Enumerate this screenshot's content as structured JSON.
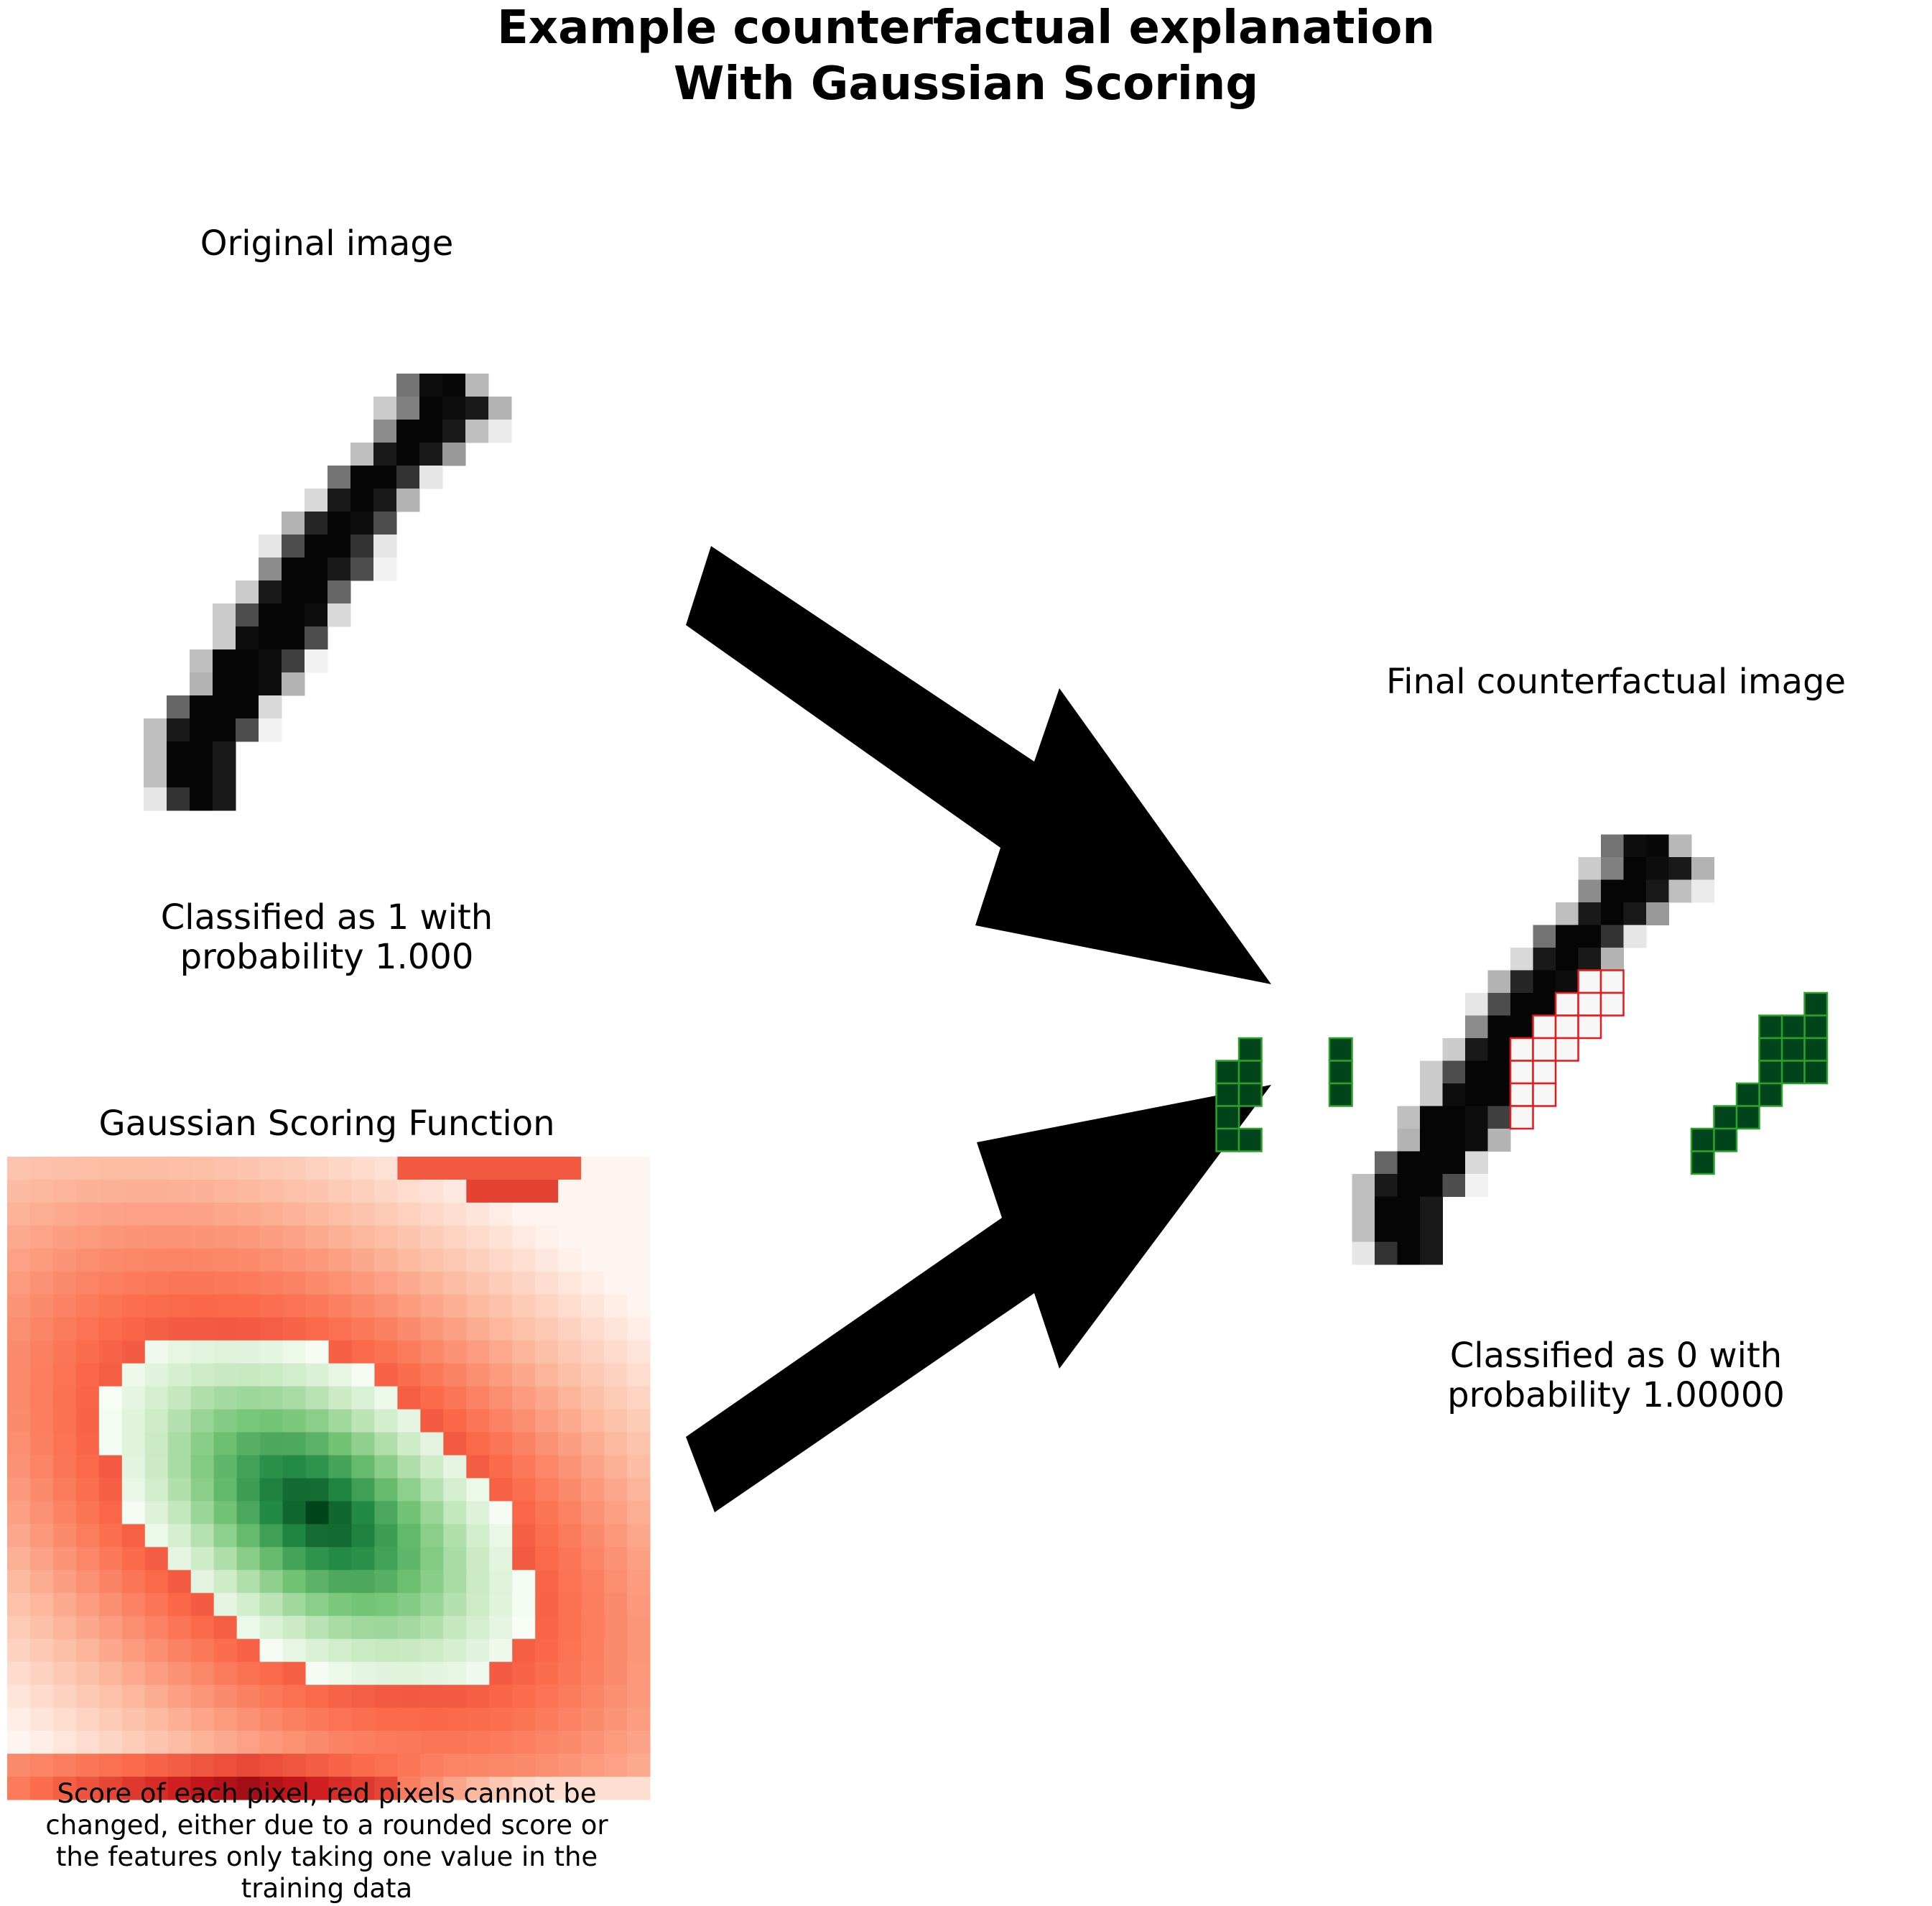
{
  "title": {
    "line1": "Example counterfactual explanation",
    "line2": "With Gaussian Scoring"
  },
  "original_panel": {
    "title": "Original image",
    "caption_line1": "Classified as 1 with",
    "caption_line2": "probability 1.000"
  },
  "final_panel": {
    "title": "Final counterfactual image",
    "caption_line1": "Classified as 0 with",
    "caption_line2": "probability 1.00000"
  },
  "gaussian_panel": {
    "title": "Gaussian Scoring Function",
    "caption_line1": "Score of each pixel, red pixels cannot be",
    "caption_line2": "changed, either due to a rounded score or",
    "caption_line3": "the features only taking one value in the",
    "caption_line4": "training data"
  },
  "colors": {
    "added_pixel_fill": "#00441b",
    "added_pixel_border": "#2ca02c",
    "removed_pixel_fill": "#f7f7f7",
    "removed_pixel_border": "#e41a1c",
    "arrow": "#000000"
  },
  "image": {
    "rows": 28,
    "cols": 28,
    "rows_bottom_left_zero": [
      [
        5,
        6,
        0.75
      ],
      [
        5,
        7,
        0.9
      ],
      [
        5,
        8,
        0.95
      ],
      [
        5,
        9,
        0.45
      ],
      [
        6,
        6,
        0.75
      ],
      [
        6,
        7,
        0.95
      ],
      [
        6,
        8,
        0.95
      ],
      [
        6,
        9,
        0.95
      ],
      [
        6,
        10,
        0.75
      ],
      [
        6,
        11,
        0.25
      ]
    ]
  },
  "orig_pixels": [
    [
      1,
      18,
      0.55
    ],
    [
      1,
      19,
      0.95
    ],
    [
      1,
      20,
      0.97
    ],
    [
      1,
      21,
      0.28
    ],
    [
      2,
      17,
      0.2
    ],
    [
      2,
      18,
      0.5
    ],
    [
      2,
      19,
      0.98
    ],
    [
      2,
      20,
      0.95
    ],
    [
      2,
      21,
      0.9
    ],
    [
      2,
      22,
      0.3
    ],
    [
      3,
      17,
      0.45
    ],
    [
      3,
      18,
      0.98
    ],
    [
      3,
      19,
      0.98
    ],
    [
      3,
      20,
      0.9
    ],
    [
      3,
      21,
      0.25
    ],
    [
      3,
      22,
      0.08
    ],
    [
      4,
      16,
      0.25
    ],
    [
      4,
      17,
      0.9
    ],
    [
      4,
      18,
      0.98
    ],
    [
      4,
      19,
      0.9
    ],
    [
      4,
      20,
      0.4
    ],
    [
      5,
      15,
      0.55
    ],
    [
      5,
      16,
      0.98
    ],
    [
      5,
      17,
      0.98
    ],
    [
      5,
      18,
      0.8
    ],
    [
      5,
      19,
      0.1
    ],
    [
      6,
      14,
      0.15
    ],
    [
      6,
      15,
      0.9
    ],
    [
      6,
      16,
      0.98
    ],
    [
      6,
      17,
      0.9
    ],
    [
      6,
      18,
      0.3
    ],
    [
      7,
      13,
      0.3
    ],
    [
      7,
      14,
      0.85
    ],
    [
      7,
      15,
      0.98
    ],
    [
      7,
      16,
      0.95
    ],
    [
      7,
      17,
      0.7
    ],
    [
      8,
      12,
      0.1
    ],
    [
      8,
      13,
      0.7
    ],
    [
      8,
      14,
      0.98
    ],
    [
      8,
      15,
      0.98
    ],
    [
      8,
      16,
      0.8
    ],
    [
      8,
      17,
      0.1
    ],
    [
      9,
      12,
      0.45
    ],
    [
      9,
      13,
      0.98
    ],
    [
      9,
      14,
      0.98
    ],
    [
      9,
      15,
      0.9
    ],
    [
      9,
      16,
      0.7
    ],
    [
      9,
      17,
      0.05
    ],
    [
      10,
      11,
      0.2
    ],
    [
      10,
      12,
      0.9
    ],
    [
      10,
      13,
      0.98
    ],
    [
      10,
      14,
      0.98
    ],
    [
      10,
      15,
      0.6
    ],
    [
      11,
      10,
      0.2
    ],
    [
      11,
      11,
      0.7
    ],
    [
      11,
      12,
      0.98
    ],
    [
      11,
      13,
      0.98
    ],
    [
      11,
      14,
      0.95
    ],
    [
      11,
      15,
      0.15
    ],
    [
      12,
      10,
      0.2
    ],
    [
      12,
      11,
      0.95
    ],
    [
      12,
      12,
      0.98
    ],
    [
      12,
      13,
      0.98
    ],
    [
      12,
      14,
      0.7
    ],
    [
      13,
      9,
      0.25
    ],
    [
      13,
      10,
      0.98
    ],
    [
      13,
      11,
      0.98
    ],
    [
      13,
      12,
      0.95
    ],
    [
      13,
      13,
      0.75
    ],
    [
      13,
      14,
      0.05
    ],
    [
      14,
      9,
      0.3
    ],
    [
      14,
      10,
      0.98
    ],
    [
      14,
      11,
      0.98
    ],
    [
      14,
      12,
      0.95
    ],
    [
      14,
      13,
      0.3
    ],
    [
      15,
      8,
      0.6
    ],
    [
      15,
      9,
      0.98
    ],
    [
      15,
      10,
      0.98
    ],
    [
      15,
      11,
      0.98
    ],
    [
      15,
      12,
      0.15
    ],
    [
      16,
      7,
      0.25
    ],
    [
      16,
      8,
      0.9
    ],
    [
      16,
      9,
      0.98
    ],
    [
      16,
      10,
      0.98
    ],
    [
      16,
      11,
      0.7
    ],
    [
      16,
      12,
      0.05
    ],
    [
      17,
      7,
      0.25
    ],
    [
      17,
      8,
      0.98
    ],
    [
      17,
      9,
      0.98
    ],
    [
      17,
      10,
      0.9
    ],
    [
      18,
      7,
      0.25
    ],
    [
      18,
      8,
      0.98
    ],
    [
      18,
      9,
      0.98
    ],
    [
      18,
      10,
      0.9
    ],
    [
      19,
      7,
      0.1
    ],
    [
      19,
      8,
      0.8
    ],
    [
      19,
      9,
      0.98
    ],
    [
      19,
      10,
      0.9
    ]
  ],
  "added_pixels": [
    [
      8,
      27
    ],
    [
      9,
      27
    ],
    [
      9,
      26
    ],
    [
      9,
      25
    ],
    [
      10,
      26
    ],
    [
      10,
      27
    ],
    [
      10,
      25
    ],
    [
      11,
      26
    ],
    [
      11,
      27
    ],
    [
      11,
      25
    ],
    [
      12,
      25
    ],
    [
      12,
      24
    ],
    [
      13,
      23
    ],
    [
      13,
      24
    ],
    [
      14,
      22
    ],
    [
      14,
      23
    ],
    [
      15,
      22
    ],
    [
      10,
      2
    ],
    [
      10,
      6
    ],
    [
      11,
      1
    ],
    [
      11,
      2
    ],
    [
      11,
      6
    ],
    [
      12,
      1
    ],
    [
      12,
      2
    ],
    [
      12,
      6
    ],
    [
      13,
      1
    ],
    [
      14,
      1
    ],
    [
      14,
      2
    ]
  ],
  "removed_pixels": [
    [
      7,
      17
    ],
    [
      7,
      18
    ],
    [
      8,
      16
    ],
    [
      8,
      17
    ],
    [
      8,
      18
    ],
    [
      9,
      15
    ],
    [
      9,
      16
    ],
    [
      9,
      17
    ],
    [
      10,
      14
    ],
    [
      10,
      15
    ],
    [
      10,
      16
    ],
    [
      11,
      14
    ],
    [
      11,
      15
    ],
    [
      12,
      14
    ],
    [
      12,
      15
    ],
    [
      13,
      14
    ]
  ]
}
